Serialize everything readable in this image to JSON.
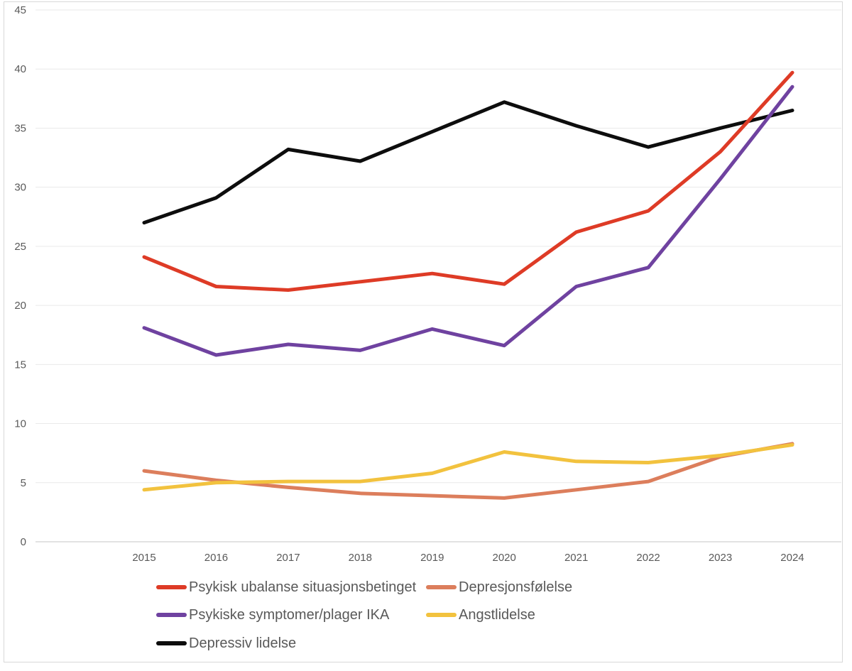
{
  "figure": {
    "background_color": "#ffffff",
    "border_color": "#d8d8d8"
  },
  "chart_data": {
    "type": "line",
    "title": "",
    "xlabel": "",
    "ylabel": "",
    "x": [
      "2015",
      "2016",
      "2017",
      "2018",
      "2019",
      "2020",
      "2021",
      "2022",
      "2023",
      "2024"
    ],
    "series": [
      {
        "name": "Psykisk ubalanse situasjonsbetinget",
        "color": "#de3b26",
        "values": [
          24.1,
          21.6,
          21.3,
          22.0,
          22.7,
          21.8,
          26.2,
          28.0,
          33.0,
          39.7
        ]
      },
      {
        "name": "Depresjonsfølelse",
        "color": "#dc7e5c",
        "values": [
          6.0,
          5.2,
          4.6,
          4.1,
          3.9,
          3.7,
          4.4,
          5.1,
          7.2,
          8.3
        ]
      },
      {
        "name": "Psykiske symptomer/plager IKA",
        "color": "#6f42a0",
        "values": [
          18.1,
          15.8,
          16.7,
          16.2,
          18.0,
          16.6,
          21.6,
          23.2,
          30.7,
          38.5
        ]
      },
      {
        "name": "Angstlidelse",
        "color": "#f2c23e",
        "values": [
          4.4,
          5.0,
          5.1,
          5.1,
          5.8,
          7.6,
          6.8,
          6.7,
          7.3,
          8.2
        ]
      },
      {
        "name": "Depressiv lidelse",
        "color": "#0d0d0d",
        "values": [
          27.0,
          29.1,
          33.2,
          32.2,
          34.7,
          37.2,
          35.2,
          33.4,
          35.0,
          36.5
        ]
      }
    ],
    "ylim": [
      0,
      45
    ],
    "yticks": [
      0,
      5,
      10,
      15,
      20,
      25,
      30,
      35,
      40,
      45
    ],
    "grid": true,
    "gridline_color": "#e9e9e9",
    "axis_line_color": "#c6c6c6",
    "axis_label_color": "#595959",
    "legend_position": "bottom-left"
  }
}
